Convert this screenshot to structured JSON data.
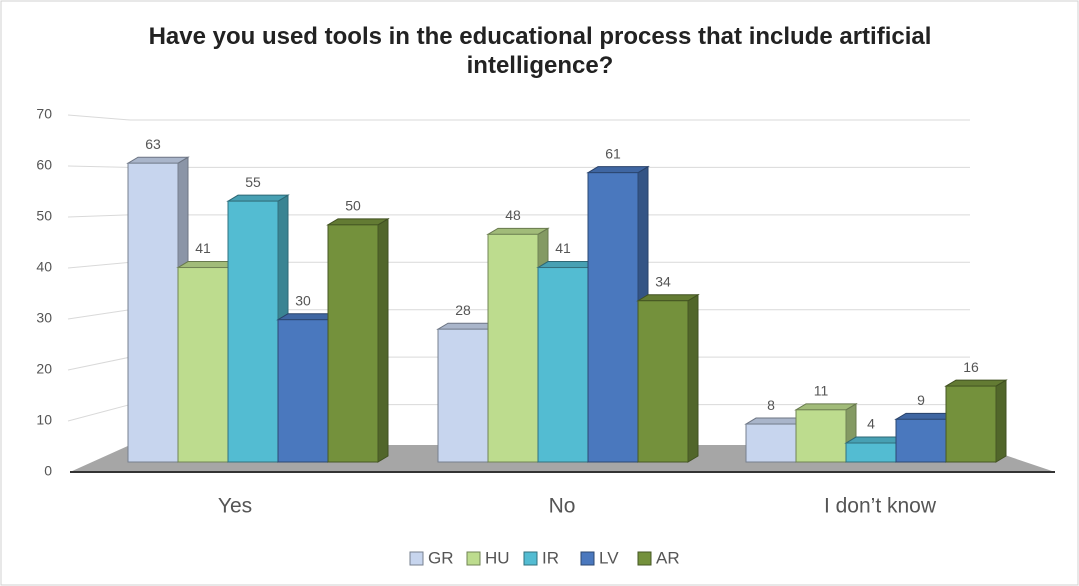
{
  "chart_data": {
    "type": "bar3d",
    "title": "Have you used tools in the educational process that include artificial intelligence?",
    "categories": [
      "Yes",
      "No",
      "I don’t know"
    ],
    "series": [
      {
        "name": "GR",
        "color": "#c7d5ee",
        "values": [
          63,
          28,
          8
        ]
      },
      {
        "name": "HU",
        "color": "#bddc8e",
        "values": [
          41,
          48,
          11
        ]
      },
      {
        "name": "IR",
        "color": "#53bcd2",
        "values": [
          55,
          41,
          4
        ]
      },
      {
        "name": "LV",
        "color": "#4a78be",
        "values": [
          30,
          61,
          9
        ]
      },
      {
        "name": "AR",
        "color": "#74913c",
        "values": [
          50,
          34,
          16
        ]
      }
    ],
    "ylim": [
      0,
      70
    ],
    "yticks": [
      0,
      10,
      20,
      30,
      40,
      50,
      60,
      70
    ],
    "grid": true,
    "legend": "bottom"
  }
}
